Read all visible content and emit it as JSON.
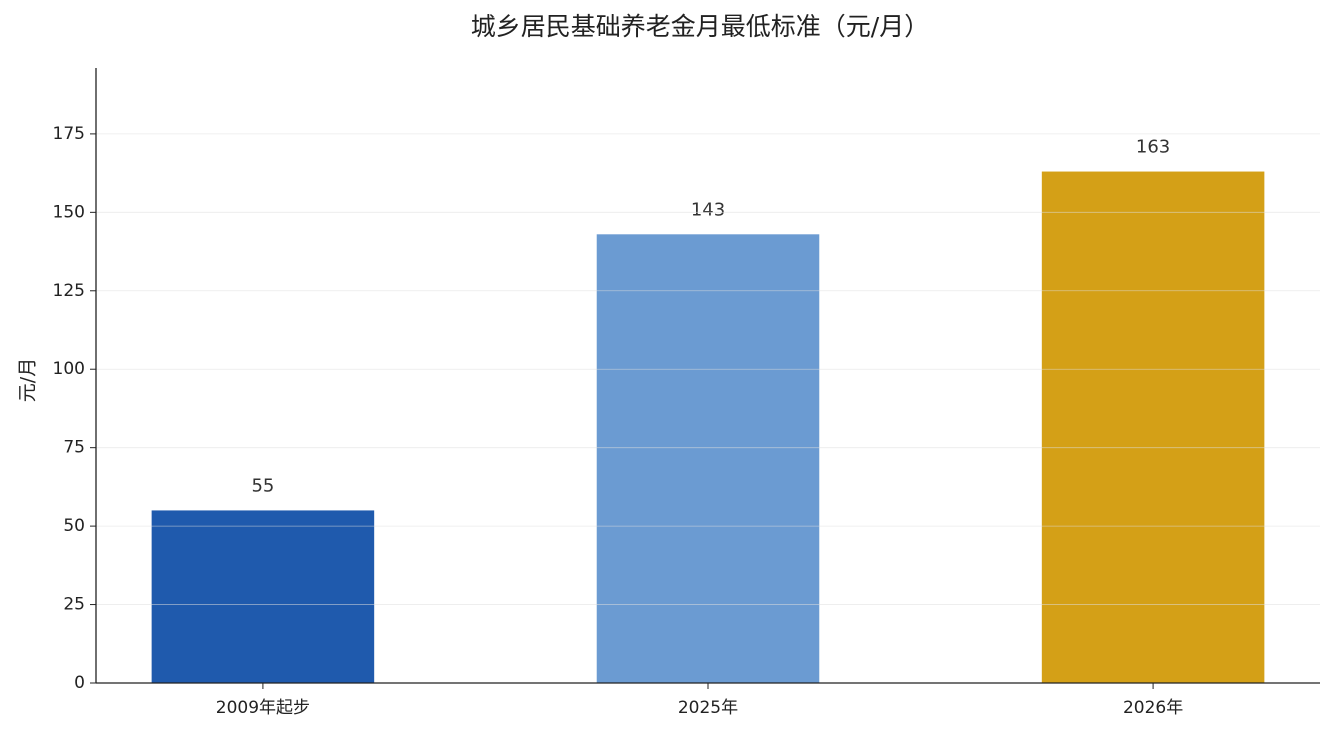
{
  "chart_data": {
    "type": "bar",
    "title": "城乡居民基础养老金月最低标准（元/月）",
    "y_label": "元/月",
    "categories": [
      "2009年起步",
      "2025年",
      "2026年"
    ],
    "values": [
      55,
      143,
      163
    ],
    "colors": [
      "#1f5aad",
      "#6b9bd2",
      "#d4a017"
    ],
    "ylim": [
      0,
      196
    ],
    "yticks": [
      0,
      25,
      50,
      75,
      100,
      125,
      150,
      175
    ],
    "grid": true
  }
}
